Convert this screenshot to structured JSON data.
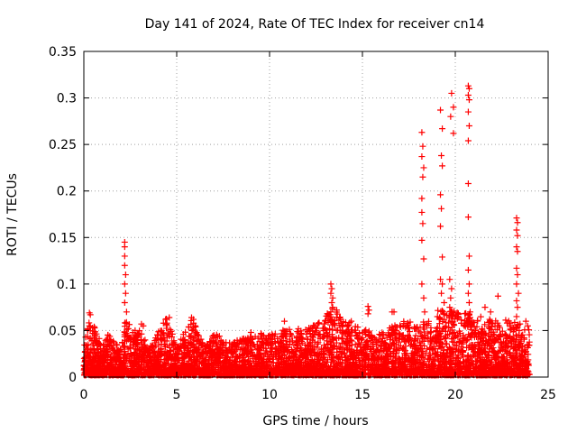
{
  "chart_data": {
    "type": "scatter",
    "title": "Day 141 of 2024, Rate Of TEC Index for receiver cn14",
    "xlabel": "GPS time / hours",
    "ylabel": "ROTI / TECUs",
    "xlim": [
      0,
      25
    ],
    "ylim": [
      0,
      0.35
    ],
    "x_ticks": [
      0,
      5,
      10,
      15,
      20,
      25
    ],
    "x_tick_labels": [
      "0",
      "5",
      "10",
      "15",
      "20",
      "25"
    ],
    "y_ticks": [
      0,
      0.05,
      0.1,
      0.15,
      0.2,
      0.25,
      0.3,
      0.35
    ],
    "y_tick_labels": [
      "0",
      "0.05",
      "0.1",
      "0.15",
      "0.2",
      "0.25",
      "0.3",
      "0.35"
    ],
    "grid": true,
    "marker": "+",
    "color": "#ff0000",
    "series": [
      {
        "name": "ROTI",
        "baseline": {
          "x_range": [
            0,
            24
          ],
          "typical_max": [
            [
              0,
              0.03
            ],
            [
              0.3,
              0.068
            ],
            [
              1,
              0.03
            ],
            [
              1.3,
              0.045
            ],
            [
              2,
              0.03
            ],
            [
              2.2,
              0.06
            ],
            [
              3,
              0.05
            ],
            [
              3.5,
              0.03
            ],
            [
              4.5,
              0.063
            ],
            [
              5,
              0.03
            ],
            [
              5.8,
              0.063
            ],
            [
              6.5,
              0.03
            ],
            [
              7,
              0.045
            ],
            [
              8,
              0.035
            ],
            [
              9,
              0.045
            ],
            [
              10,
              0.045
            ],
            [
              11,
              0.05
            ],
            [
              12,
              0.05
            ],
            [
              13,
              0.06
            ],
            [
              13.3,
              0.08
            ],
            [
              14,
              0.06
            ],
            [
              15,
              0.05
            ],
            [
              16,
              0.045
            ],
            [
              17,
              0.06
            ],
            [
              18,
              0.055
            ],
            [
              18.5,
              0.06
            ],
            [
              19,
              0.07
            ],
            [
              20,
              0.07
            ],
            [
              21,
              0.065
            ],
            [
              22,
              0.06
            ],
            [
              23,
              0.06
            ],
            [
              24,
              0.05
            ]
          ]
        },
        "points": [
          [
            0.3,
            0.069
          ],
          [
            0.35,
            0.067
          ],
          [
            0.3,
            0.055
          ],
          [
            1.3,
            0.045
          ],
          [
            2.2,
            0.145
          ],
          [
            2.2,
            0.14
          ],
          [
            2.2,
            0.13
          ],
          [
            2.2,
            0.12
          ],
          [
            2.25,
            0.11
          ],
          [
            2.2,
            0.1
          ],
          [
            2.25,
            0.09
          ],
          [
            2.2,
            0.08
          ],
          [
            2.3,
            0.07
          ],
          [
            3.1,
            0.057
          ],
          [
            3.2,
            0.055
          ],
          [
            4.6,
            0.064
          ],
          [
            4.4,
            0.062
          ],
          [
            5.8,
            0.064
          ],
          [
            5.9,
            0.062
          ],
          [
            7.0,
            0.045
          ],
          [
            7.3,
            0.044
          ],
          [
            9.0,
            0.048
          ],
          [
            10.8,
            0.06
          ],
          [
            12.2,
            0.052
          ],
          [
            13.3,
            0.1
          ],
          [
            13.35,
            0.095
          ],
          [
            13.3,
            0.09
          ],
          [
            13.4,
            0.085
          ],
          [
            13.35,
            0.08
          ],
          [
            13.4,
            0.075
          ],
          [
            13.3,
            0.07
          ],
          [
            14.4,
            0.06
          ],
          [
            15.3,
            0.076
          ],
          [
            15.35,
            0.072
          ],
          [
            15.3,
            0.068
          ],
          [
            16.6,
            0.07
          ],
          [
            16.7,
            0.07
          ],
          [
            17.2,
            0.045
          ],
          [
            18.2,
            0.263
          ],
          [
            18.25,
            0.248
          ],
          [
            18.2,
            0.237
          ],
          [
            18.3,
            0.225
          ],
          [
            18.25,
            0.215
          ],
          [
            18.2,
            0.192
          ],
          [
            18.2,
            0.177
          ],
          [
            18.25,
            0.165
          ],
          [
            18.2,
            0.147
          ],
          [
            18.3,
            0.127
          ],
          [
            18.2,
            0.1
          ],
          [
            18.3,
            0.085
          ],
          [
            18.35,
            0.07
          ],
          [
            19.2,
            0.287
          ],
          [
            19.3,
            0.267
          ],
          [
            19.25,
            0.238
          ],
          [
            19.3,
            0.227
          ],
          [
            19.2,
            0.196
          ],
          [
            19.25,
            0.181
          ],
          [
            19.2,
            0.162
          ],
          [
            19.3,
            0.129
          ],
          [
            19.2,
            0.105
          ],
          [
            19.3,
            0.1
          ],
          [
            19.25,
            0.09
          ],
          [
            19.4,
            0.08
          ],
          [
            19.35,
            0.07
          ],
          [
            19.8,
            0.305
          ],
          [
            19.9,
            0.29
          ],
          [
            19.75,
            0.28
          ],
          [
            19.9,
            0.262
          ],
          [
            19.7,
            0.105
          ],
          [
            19.8,
            0.095
          ],
          [
            19.75,
            0.085
          ],
          [
            19.7,
            0.075
          ],
          [
            20.7,
            0.313
          ],
          [
            20.75,
            0.31
          ],
          [
            20.7,
            0.303
          ],
          [
            20.75,
            0.298
          ],
          [
            20.7,
            0.285
          ],
          [
            20.75,
            0.27
          ],
          [
            20.7,
            0.254
          ],
          [
            20.7,
            0.208
          ],
          [
            20.7,
            0.172
          ],
          [
            20.75,
            0.13
          ],
          [
            20.7,
            0.115
          ],
          [
            20.75,
            0.1
          ],
          [
            20.7,
            0.09
          ],
          [
            20.75,
            0.08
          ],
          [
            20.8,
            0.07
          ],
          [
            20.9,
            0.06
          ],
          [
            21.6,
            0.075
          ],
          [
            21.9,
            0.07
          ],
          [
            22.3,
            0.087
          ],
          [
            23.3,
            0.171
          ],
          [
            23.35,
            0.166
          ],
          [
            23.3,
            0.158
          ],
          [
            23.35,
            0.152
          ],
          [
            23.3,
            0.14
          ],
          [
            23.35,
            0.135
          ],
          [
            23.3,
            0.117
          ],
          [
            23.35,
            0.11
          ],
          [
            23.3,
            0.1
          ],
          [
            23.4,
            0.09
          ],
          [
            23.3,
            0.082
          ],
          [
            23.35,
            0.075
          ],
          [
            23.3,
            0.065
          ],
          [
            23.8,
            0.06
          ],
          [
            23.9,
            0.055
          ]
        ]
      }
    ]
  }
}
